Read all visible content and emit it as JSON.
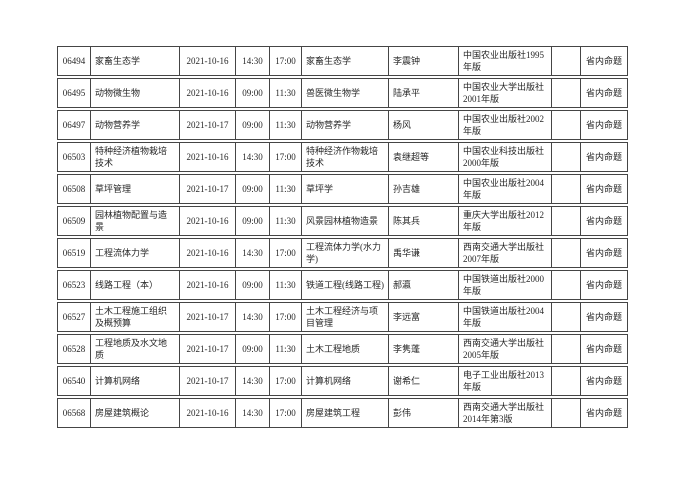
{
  "page": {
    "kind": "exam-schedule-document",
    "background": "#ffffff"
  },
  "colors": {
    "border": "#454545",
    "text": "#262626",
    "background": "#ffffff"
  },
  "table": {
    "columns": [
      {
        "key": "code",
        "label": "course-code",
        "width": 33,
        "align": "center",
        "nowrap": true
      },
      {
        "key": "course",
        "label": "course-name",
        "width": 89,
        "align": "left",
        "nowrap": false
      },
      {
        "key": "date",
        "label": "exam-date",
        "width": 56,
        "align": "center",
        "nowrap": true
      },
      {
        "key": "start",
        "label": "start-time",
        "width": 34,
        "align": "center",
        "nowrap": true
      },
      {
        "key": "end",
        "label": "end-time",
        "width": 32,
        "align": "center",
        "nowrap": true
      },
      {
        "key": "textbook",
        "label": "textbook-name",
        "width": 87,
        "align": "left",
        "nowrap": false
      },
      {
        "key": "author",
        "label": "author",
        "width": 70,
        "align": "left",
        "nowrap": false
      },
      {
        "key": "publisher",
        "label": "publisher",
        "width": 93,
        "align": "left",
        "nowrap": false
      },
      {
        "key": "blank",
        "label": "blank",
        "width": 29,
        "align": "center",
        "nowrap": true
      },
      {
        "key": "mode",
        "label": "exam-mode",
        "width": 48,
        "align": "center",
        "nowrap": true
      }
    ],
    "rows": [
      {
        "code": "06494",
        "course": "家畜生态学",
        "date": "2021-10-16",
        "start": "14:30",
        "end": "17:00",
        "textbook": "家畜生态学",
        "author": "李震钟",
        "publisher": "中国农业出版社1995年版",
        "blank": "",
        "mode": "省内命题"
      },
      {
        "code": "06495",
        "course": "动物微生物",
        "date": "2021-10-16",
        "start": "09:00",
        "end": "11:30",
        "textbook": "兽医微生物学",
        "author": "陆承平",
        "publisher": "中国农业大学出版社2001年版",
        "blank": "",
        "mode": "省内命题"
      },
      {
        "code": "06497",
        "course": "动物营养学",
        "date": "2021-10-17",
        "start": "09:00",
        "end": "11:30",
        "textbook": "动物营养学",
        "author": "杨风",
        "publisher": "中国农业出版社2002年版",
        "blank": "",
        "mode": "省内命题"
      },
      {
        "code": "06503",
        "course": "特种经济植物栽培技术",
        "date": "2021-10-16",
        "start": "14:30",
        "end": "17:00",
        "textbook": "特种经济作物栽培技术",
        "author": "袁继超等",
        "publisher": "中国农业科技出版社2000年版",
        "blank": "",
        "mode": "省内命题"
      },
      {
        "code": "06508",
        "course": "草坪管理",
        "date": "2021-10-17",
        "start": "09:00",
        "end": "11:30",
        "textbook": "草坪学",
        "author": "孙吉雄",
        "publisher": "中国农业出版社2004年版",
        "blank": "",
        "mode": "省内命题"
      },
      {
        "code": "06509",
        "course": "园林植物配置与造景",
        "date": "2021-10-16",
        "start": "09:00",
        "end": "11:30",
        "textbook": "风景园林植物造景",
        "author": "陈其兵",
        "publisher": "重庆大学出版社2012年版",
        "blank": "",
        "mode": "省内命题"
      },
      {
        "code": "06519",
        "course": "工程流体力学",
        "date": "2021-10-16",
        "start": "14:30",
        "end": "17:00",
        "textbook": "工程流体力学(水力学)",
        "author": "禹华谦",
        "publisher": "西南交通大学出版社2007年版",
        "blank": "",
        "mode": "省内命题"
      },
      {
        "code": "06523",
        "course": "线路工程（本）",
        "date": "2021-10-16",
        "start": "09:00",
        "end": "11:30",
        "textbook": "铁道工程(线路工程)",
        "author": "郝瀛",
        "publisher": "中国铁道出版社2000年版",
        "blank": "",
        "mode": "省内命题"
      },
      {
        "code": "06527",
        "course": "土木工程施工组织及概预算",
        "date": "2021-10-17",
        "start": "14:30",
        "end": "17:00",
        "textbook": "土木工程经济与项目管理",
        "author": "李远富",
        "publisher": "中国铁道出版社2004年版",
        "blank": "",
        "mode": "省内命题"
      },
      {
        "code": "06528",
        "course": "工程地质及水文地质",
        "date": "2021-10-17",
        "start": "09:00",
        "end": "11:30",
        "textbook": "土木工程地质",
        "author": "李隽蓬",
        "publisher": "西南交通大学出版社2005年版",
        "blank": "",
        "mode": "省内命题"
      },
      {
        "code": "06540",
        "course": "计算机网络",
        "date": "2021-10-17",
        "start": "14:30",
        "end": "17:00",
        "textbook": "计算机网络",
        "author": "谢希仁",
        "publisher": "电子工业出版社2013年版",
        "blank": "",
        "mode": "省内命题"
      },
      {
        "code": "06568",
        "course": "房屋建筑概论",
        "date": "2021-10-16",
        "start": "14:30",
        "end": "17:00",
        "textbook": "房屋建筑工程",
        "author": "彭伟",
        "publisher": "西南交通大学出版社2014年第3版",
        "blank": "",
        "mode": "省内命题"
      }
    ]
  }
}
